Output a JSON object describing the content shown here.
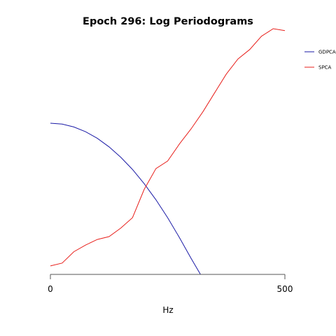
{
  "chart_data": {
    "type": "line",
    "title": "Epoch 296: Log Periodograms",
    "xlabel": "Hz",
    "ylabel": "",
    "xlim": [
      0,
      500
    ],
    "xticks": [
      0,
      500
    ],
    "y_axis_visible": false,
    "grid": false,
    "legend_position": "top-right",
    "series": [
      {
        "name": "GDPCA",
        "color": "#1a1aa6",
        "x": [
          0,
          25,
          50,
          75,
          100,
          125,
          150,
          175,
          200,
          225,
          250,
          275,
          300,
          320
        ],
        "y": [
          0.8,
          0.795,
          0.78,
          0.755,
          0.72,
          0.675,
          0.62,
          0.555,
          0.48,
          0.395,
          0.3,
          0.195,
          0.085,
          0.0
        ]
      },
      {
        "name": "SPCA",
        "color": "#e8201c",
        "x": [
          0,
          25,
          50,
          75,
          100,
          125,
          150,
          175,
          200,
          225,
          250,
          275,
          300,
          325,
          350,
          375,
          400,
          425,
          450,
          475,
          500
        ],
        "y": [
          0.045,
          0.06,
          0.12,
          0.155,
          0.185,
          0.2,
          0.245,
          0.3,
          0.45,
          0.56,
          0.6,
          0.69,
          0.77,
          0.86,
          0.96,
          1.06,
          1.14,
          1.19,
          1.26,
          1.3,
          1.29
        ]
      }
    ]
  }
}
